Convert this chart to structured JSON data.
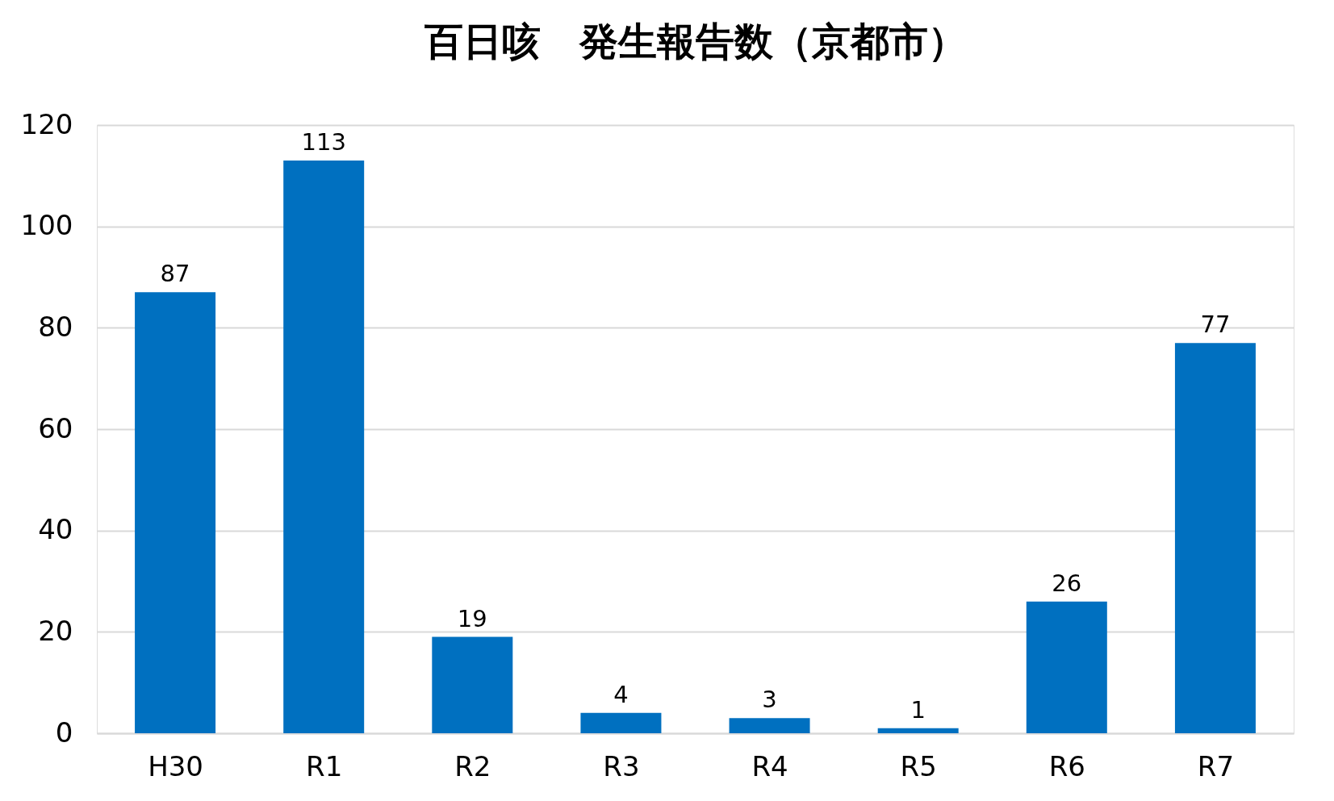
{
  "chart_data": {
    "type": "bar",
    "title": "百日咳　発生報告数（京都市）",
    "categories": [
      "H30",
      "R1",
      "R2",
      "R3",
      "R4",
      "R5",
      "R6",
      "R7"
    ],
    "values": [
      87,
      113,
      19,
      4,
      3,
      1,
      26,
      77
    ],
    "color": "#0070c0",
    "ylim": [
      0,
      120
    ],
    "yticks": [
      0,
      20,
      40,
      60,
      80,
      100,
      120
    ],
    "grid": "y",
    "data_labels": true
  }
}
